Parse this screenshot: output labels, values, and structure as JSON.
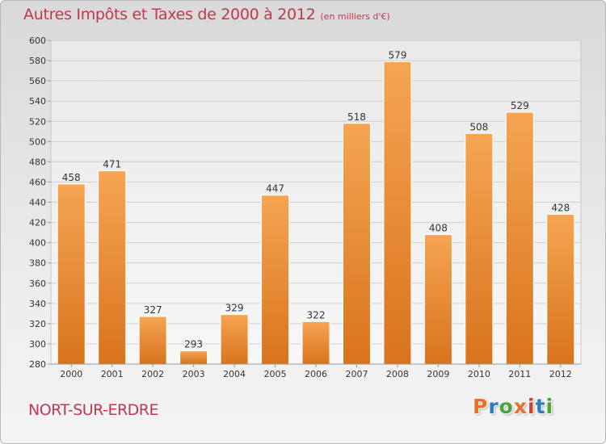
{
  "header": {
    "title": "Autres Impôts et Taxes de 2000 à 2012",
    "unit": "(en milliers d'€)"
  },
  "footer": {
    "place": "NORT-SUR-ERDRE",
    "logo_text": "Proxiti"
  },
  "colors": {
    "title": "#c0384f",
    "bar_light": "#f5a552",
    "bar_dark": "#d9731d",
    "logo_letters": [
      "#e8702a",
      "#2a7fc1",
      "#4aa63c",
      "#e8702a",
      "#d63d2e",
      "#2a7fc1",
      "#4aa63c"
    ]
  },
  "chart_data": {
    "type": "bar",
    "title": "Autres Impôts et Taxes de 2000 à 2012",
    "subtitle": "(en milliers d'€)",
    "xlabel": "",
    "ylabel": "",
    "categories": [
      "2000",
      "2001",
      "2002",
      "2003",
      "2004",
      "2005",
      "2006",
      "2007",
      "2008",
      "2009",
      "2010",
      "2011",
      "2012"
    ],
    "values": [
      458,
      471,
      327,
      293,
      329,
      447,
      322,
      518,
      579,
      408,
      508,
      529,
      428
    ],
    "ylim": [
      280,
      600
    ],
    "yticks": [
      280,
      300,
      320,
      340,
      360,
      380,
      400,
      420,
      440,
      460,
      480,
      500,
      520,
      540,
      560,
      580,
      600
    ],
    "grid": true,
    "legend": "none",
    "data_labels": true
  }
}
